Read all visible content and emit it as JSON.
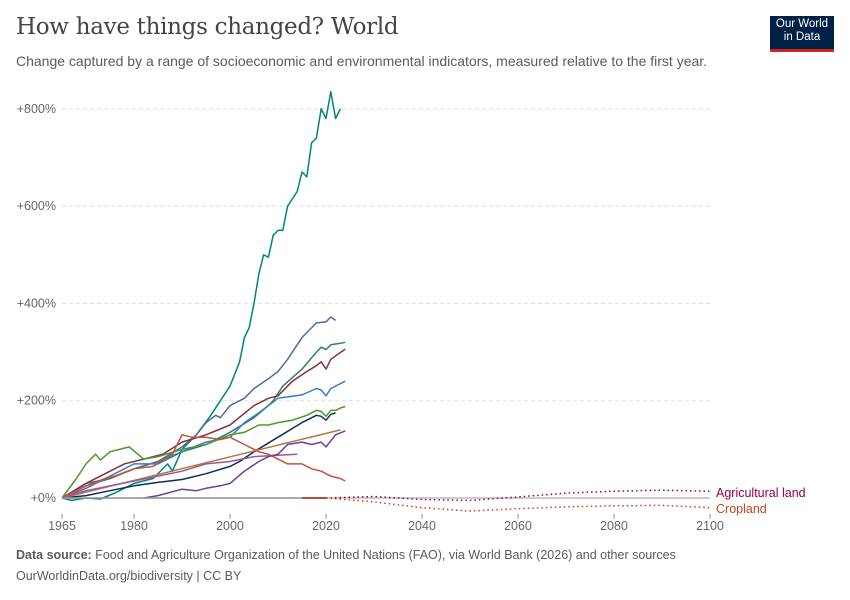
{
  "title": "How have things changed? World",
  "subtitle": "Change captured by a range of socioeconomic and environmental indicators, measured relative to the first year.",
  "logo": {
    "line1": "Our World",
    "line2": "in Data"
  },
  "footer": {
    "source_label": "Data source:",
    "source": "Food and Agriculture Organization of the United Nations (FAO), via World Bank (2026) and other sources",
    "url": "OurWorldinData.org/biodiversity | CC BY"
  },
  "chart_data": {
    "type": "line",
    "xlim": [
      1965,
      2100
    ],
    "ylim": [
      -30,
      850
    ],
    "x_ticks": [
      1965,
      1980,
      2000,
      2020,
      2040,
      2060,
      2080,
      2100
    ],
    "y_ticks": [
      {
        "v": 0,
        "label": "+0%"
      },
      {
        "v": 200,
        "label": "+200%"
      },
      {
        "v": 400,
        "label": "+400%"
      },
      {
        "v": 600,
        "label": "+600%"
      },
      {
        "v": 800,
        "label": "+800%"
      }
    ],
    "grid": "horizontal dashed",
    "series": [
      {
        "color": "#00847e",
        "x": [
          1965,
          1967,
          1970,
          1973,
          1976,
          1980,
          1984,
          1987,
          1988,
          1990,
          1993,
          1996,
          1998,
          2000,
          2002,
          2003,
          2004,
          2005,
          2006,
          2007,
          2008,
          2009,
          2010,
          2011,
          2012,
          2014,
          2015,
          2016,
          2017,
          2018,
          2019,
          2020,
          2021,
          2022,
          2023
        ],
        "y": [
          0,
          -5,
          0,
          -2,
          10,
          30,
          40,
          70,
          55,
          100,
          130,
          170,
          200,
          230,
          280,
          330,
          350,
          400,
          460,
          500,
          495,
          540,
          550,
          550,
          600,
          630,
          670,
          660,
          730,
          740,
          800,
          780,
          835,
          780,
          800
        ]
      },
      {
        "color": "#4c6a9c",
        "x": [
          1965,
          1970,
          1975,
          1980,
          1985,
          1990,
          1993,
          1995,
          1997,
          1998,
          2000,
          2003,
          2005,
          2008,
          2010,
          2012,
          2015,
          2018,
          2020,
          2021,
          2022
        ],
        "y": [
          0,
          30,
          40,
          60,
          75,
          105,
          130,
          155,
          170,
          165,
          190,
          205,
          225,
          245,
          260,
          285,
          330,
          360,
          362,
          372,
          365
        ]
      },
      {
        "color": "#2c8465",
        "x": [
          1965,
          1970,
          1975,
          1980,
          1985,
          1990,
          1995,
          2000,
          2005,
          2008,
          2009,
          2011,
          2015,
          2018,
          2019,
          2020,
          2021,
          2023,
          2024
        ],
        "y": [
          0,
          25,
          40,
          60,
          75,
          95,
          110,
          135,
          165,
          190,
          200,
          230,
          265,
          300,
          310,
          305,
          315,
          318,
          320
        ]
      },
      {
        "color": "#883039",
        "x": [
          1965,
          1970,
          1975,
          1978,
          1982,
          1986,
          1990,
          1995,
          2000,
          2005,
          2008,
          2010,
          2013,
          2016,
          2018,
          2019,
          2020,
          2021,
          2024
        ],
        "y": [
          0,
          30,
          55,
          70,
          80,
          90,
          115,
          130,
          150,
          190,
          205,
          210,
          240,
          260,
          272,
          280,
          265,
          285,
          306
        ]
      },
      {
        "color": "#3b7ac4",
        "x": [
          1965,
          1970,
          1975,
          1980,
          1985,
          1990,
          1995,
          2000,
          2003,
          2006,
          2008,
          2010,
          2015,
          2018,
          2019,
          2020,
          2021,
          2024
        ],
        "y": [
          0,
          20,
          45,
          70,
          70,
          95,
          115,
          125,
          155,
          175,
          190,
          205,
          212,
          225,
          222,
          210,
          225,
          240
        ]
      },
      {
        "color": "#4a9a29",
        "x": [
          1965,
          1968,
          1970,
          1972,
          1973,
          1975,
          1977,
          1979,
          1982,
          1985,
          1990,
          1995,
          2000,
          2003,
          2006,
          2008,
          2010,
          2013,
          2016,
          2018,
          2019,
          2020,
          2021,
          2022,
          2023,
          2024
        ],
        "y": [
          0,
          40,
          70,
          90,
          78,
          95,
          100,
          105,
          80,
          85,
          100,
          110,
          130,
          135,
          150,
          150,
          155,
          160,
          170,
          180,
          178,
          168,
          180,
          180,
          185,
          188
        ]
      },
      {
        "color": "#0d2e5c",
        "x": [
          1965,
          1970,
          1975,
          1980,
          1985,
          1990,
          1995,
          2000,
          2002,
          2005,
          2010,
          2015,
          2018,
          2019,
          2020,
          2021,
          2022
        ],
        "y": [
          0,
          5,
          15,
          25,
          32,
          38,
          50,
          65,
          75,
          95,
          125,
          155,
          170,
          168,
          160,
          172,
          175
        ]
      },
      {
        "color": "#b07a3e",
        "x": [
          1965,
          2023
        ],
        "y": [
          0,
          140
        ]
      },
      {
        "color": "#c4523e",
        "x": [
          1965,
          1970,
          1974,
          1976,
          1980,
          1984,
          1988,
          1990,
          1992,
          1995,
          1998,
          2000,
          2003,
          2006,
          2008,
          2010,
          2012,
          2015,
          2017,
          2019,
          2021,
          2023,
          2024
        ],
        "y": [
          0,
          25,
          40,
          45,
          60,
          65,
          90,
          130,
          125,
          125,
          120,
          125,
          110,
          95,
          90,
          80,
          70,
          70,
          60,
          55,
          45,
          40,
          35
        ]
      },
      {
        "color": "#a2559c",
        "x": [
          1965,
          1970,
          1975,
          1980,
          1985,
          1990,
          1995,
          2000,
          2005,
          2010,
          2014
        ],
        "y": [
          0,
          15,
          25,
          35,
          45,
          55,
          70,
          75,
          85,
          88,
          90
        ]
      },
      {
        "color": "#6d3e91",
        "x": [
          1982,
          1985,
          1990,
          1993,
          1995,
          1998,
          2000,
          2003,
          2006,
          2008,
          2010,
          2012,
          2015,
          2017,
          2019,
          2020,
          2022,
          2024
        ],
        "y": [
          0,
          5,
          18,
          15,
          20,
          25,
          30,
          55,
          75,
          85,
          90,
          110,
          115,
          110,
          115,
          105,
          130,
          138
        ]
      },
      {
        "color": "#999999",
        "x": [
          1965,
          2020
        ],
        "y": [
          0,
          0
        ]
      }
    ],
    "labeled_series": [
      {
        "name": "Agricultural land",
        "color": "#970046",
        "dotted_from": 2020,
        "x": [
          2015,
          2020,
          2030,
          2040,
          2050,
          2060,
          2070,
          2080,
          2090,
          2100
        ],
        "y": [
          0,
          0,
          3,
          -3,
          -5,
          2,
          10,
          14,
          16,
          14
        ]
      },
      {
        "name": "Cropland",
        "color": "#c8441d",
        "dotted_from": 2020,
        "x": [
          2015,
          2020,
          2030,
          2040,
          2050,
          2060,
          2070,
          2080,
          2090,
          2100
        ],
        "y": [
          0,
          0,
          -8,
          -20,
          -27,
          -22,
          -18,
          -16,
          -15,
          -20
        ]
      }
    ]
  }
}
